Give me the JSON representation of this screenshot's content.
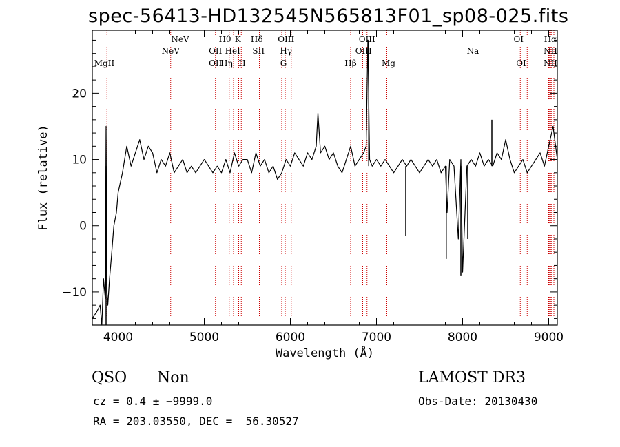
{
  "title": "spec-56413-HD132545N565813F01_sp08-025.fits",
  "info": {
    "class": "QSO",
    "subclass": "Non",
    "survey": "LAMOST DR3",
    "cz": "cz = 0.4 ± −9999.0",
    "obs_date": "Obs-Date: 20130430",
    "radec": "RA = 203.03550, DEC =  56.30527"
  },
  "chart_data": {
    "type": "line",
    "xlabel": "Wavelength (Å)",
    "ylabel": "Flux (relative)",
    "xlim": [
      3700,
      9100
    ],
    "ylim": [
      -15,
      29.5
    ],
    "xticks": [
      4000,
      5000,
      6000,
      7000,
      8000,
      9000
    ],
    "yticks": [
      -10,
      0,
      10,
      20
    ],
    "line_color": "#000000",
    "marker_color": "#cc0000",
    "spectrum": {
      "x": [
        3700,
        3750,
        3790,
        3810,
        3830,
        3850,
        3860,
        3870,
        3880,
        3900,
        3920,
        3950,
        3980,
        4000,
        4050,
        4100,
        4150,
        4200,
        4250,
        4300,
        4350,
        4400,
        4450,
        4500,
        4550,
        4600,
        4650,
        4700,
        4750,
        4800,
        4850,
        4900,
        4950,
        5000,
        5050,
        5100,
        5150,
        5200,
        5250,
        5300,
        5350,
        5400,
        5450,
        5500,
        5550,
        5600,
        5650,
        5700,
        5750,
        5800,
        5850,
        5900,
        5950,
        6000,
        6050,
        6100,
        6150,
        6200,
        6250,
        6300,
        6320,
        6350,
        6400,
        6450,
        6500,
        6550,
        6600,
        6650,
        6700,
        6750,
        6800,
        6850,
        6880,
        6900,
        6920,
        6950,
        7000,
        7050,
        7100,
        7150,
        7200,
        7250,
        7300,
        7350,
        7400,
        7450,
        7500,
        7550,
        7600,
        7650,
        7700,
        7750,
        7800,
        7820,
        7850,
        7900,
        7950,
        7980,
        8000,
        8050,
        8100,
        8150,
        8200,
        8250,
        8300,
        8350,
        8400,
        8450,
        8500,
        8550,
        8600,
        8650,
        8700,
        8750,
        8800,
        8850,
        8900,
        8950,
        9000,
        9050,
        9100
      ],
      "y": [
        -14,
        -13,
        -12,
        -15,
        -8,
        -11,
        15,
        -10,
        -12,
        -8,
        -5,
        0,
        2,
        5,
        8,
        12,
        9,
        11,
        13,
        10,
        12,
        11,
        8,
        10,
        9,
        11,
        8,
        9,
        10,
        8,
        9,
        8,
        9,
        10,
        9,
        8,
        9,
        8,
        10,
        8,
        11,
        9,
        10,
        10,
        8,
        11,
        9,
        10,
        8,
        9,
        7,
        8,
        10,
        9,
        11,
        10,
        9,
        11,
        10,
        12,
        17,
        11,
        12,
        10,
        11,
        9,
        8,
        10,
        12,
        9,
        10,
        11,
        12,
        28,
        10,
        9,
        10,
        9,
        10,
        9,
        8,
        9,
        10,
        9,
        10,
        9,
        8,
        9,
        10,
        9,
        10,
        8,
        9,
        2,
        10,
        9,
        -2,
        10,
        -7,
        9,
        10,
        9,
        11,
        9,
        10,
        9,
        11,
        10,
        13,
        10,
        8,
        9,
        10,
        8,
        9,
        10,
        11,
        9,
        12,
        15,
        10
      ]
    },
    "spike_lines": [
      {
        "x": 3860,
        "y": -15
      },
      {
        "x": 6910,
        "y": 28
      },
      {
        "x": 7340,
        "y": -1.5
      },
      {
        "x": 7810,
        "y": -5
      },
      {
        "x": 7980,
        "y": -7.5
      },
      {
        "x": 8060,
        "y": -2
      },
      {
        "x": 8340,
        "y": 16
      }
    ],
    "lines": [
      {
        "label": "MgII",
        "x": 3840,
        "row": 3,
        "anchor": "middle"
      },
      {
        "label": "NeV",
        "x": 4610,
        "row": 2,
        "anchor": "middle"
      },
      {
        "label": "NeV",
        "x": 4720,
        "row": 1,
        "anchor": "middle"
      },
      {
        "label": "OII",
        "x": 5130,
        "row": 2,
        "anchor": "middle"
      },
      {
        "label": "OII",
        "x": 5130,
        "row": 3,
        "anchor": "middle"
      },
      {
        "label": "Hθ",
        "x": 5240,
        "row": 1,
        "anchor": "middle"
      },
      {
        "label": "Hη",
        "x": 5260,
        "row": 3,
        "anchor": "middle"
      },
      {
        "label": "HeI",
        "x": 5330,
        "row": 2,
        "anchor": "middle"
      },
      {
        "label": "K",
        "x": 5390,
        "row": 1,
        "anchor": "middle"
      },
      {
        "label": "H",
        "x": 5440,
        "row": 3,
        "anchor": "middle"
      },
      {
        "label": "Hδ",
        "x": 5610,
        "row": 1,
        "anchor": "middle"
      },
      {
        "label": "SII",
        "x": 5630,
        "row": 2,
        "anchor": "middle"
      },
      {
        "label": "OIII",
        "x": 5950,
        "row": 1,
        "anchor": "middle"
      },
      {
        "label": "Hγ",
        "x": 5950,
        "row": 2,
        "anchor": "middle"
      },
      {
        "label": "G",
        "x": 5920,
        "row": 3,
        "anchor": "middle"
      },
      {
        "label": "Hβ",
        "x": 6700,
        "row": 3,
        "anchor": "middle"
      },
      {
        "label": "OIII",
        "x": 6890,
        "row": 1,
        "anchor": "middle"
      },
      {
        "label": "OIII",
        "x": 6850,
        "row": 2,
        "anchor": "middle"
      },
      {
        "label": "Mg",
        "x": 7140,
        "row": 3,
        "anchor": "middle"
      },
      {
        "label": "Na",
        "x": 8120,
        "row": 2,
        "anchor": "middle"
      },
      {
        "label": "OI",
        "x": 8650,
        "row": 1,
        "anchor": "middle"
      },
      {
        "label": "OI",
        "x": 8680,
        "row": 3,
        "anchor": "middle"
      },
      {
        "label": "Hα",
        "x": 9020,
        "row": 1,
        "anchor": "middle"
      },
      {
        "label": "NII",
        "x": 9020,
        "row": 2,
        "anchor": "middle"
      },
      {
        "label": "NII",
        "x": 9020,
        "row": 3,
        "anchor": "middle"
      }
    ],
    "marker_positions": [
      3870,
      4610,
      4720,
      5130,
      5240,
      5290,
      5340,
      5400,
      5430,
      5600,
      5640,
      5900,
      5940,
      6010,
      6700,
      6840,
      6890,
      7120,
      8120,
      8670,
      8750,
      9000,
      9010,
      9020,
      9030,
      9040,
      9060
    ]
  }
}
